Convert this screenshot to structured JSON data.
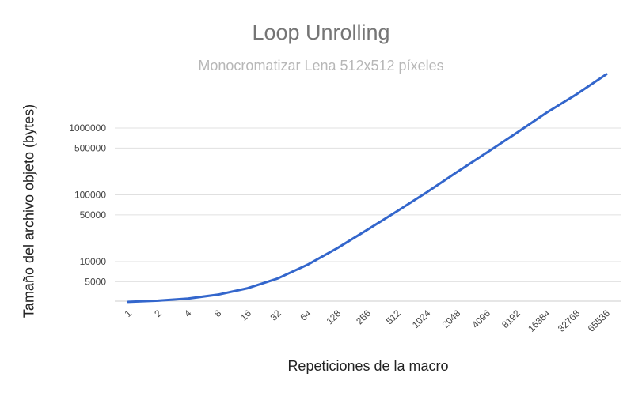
{
  "chart_data": {
    "type": "line",
    "title": "Loop Unrolling",
    "subtitle": "Monocromatizar Lena 512x512 píxeles",
    "xlabel": "Repeticiones de la macro",
    "ylabel": "Tamaño del archivo objeto (bytes)",
    "yscale": "log",
    "ylim": [
      1500,
      3000000
    ],
    "yticks": [
      5000,
      10000,
      50000,
      100000,
      500000,
      1000000
    ],
    "ytick_labels": [
      "5000",
      "10000",
      "50000",
      "100000",
      "500000",
      "1000000"
    ],
    "categories": [
      "1",
      "2",
      "4",
      "8",
      "16",
      "32",
      "64",
      "128",
      "256",
      "512",
      "1024",
      "2048",
      "4096",
      "8192",
      "16384",
      "32768",
      "65536"
    ],
    "series": [
      {
        "color": "#3366cc",
        "values": [
          2500,
          2600,
          2800,
          3200,
          4000,
          5600,
          9000,
          16000,
          30000,
          57000,
          110000,
          220000,
          430000,
          850000,
          1700000,
          3200000,
          6400000
        ]
      }
    ],
    "grid": true,
    "legend": "none"
  }
}
